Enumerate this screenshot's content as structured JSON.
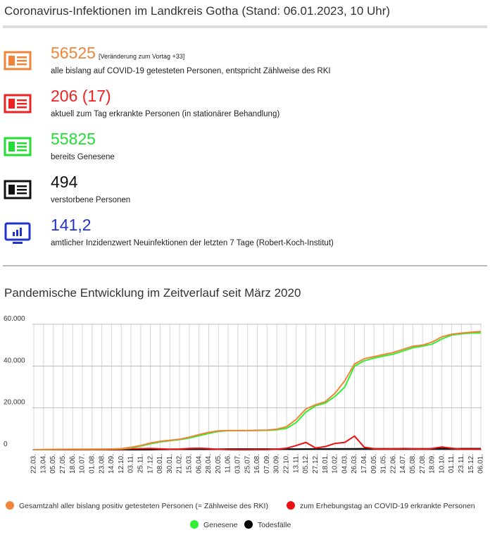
{
  "header": {
    "title": "Coronavirus-Infektionen im Landkreis Gotha (Stand: 06.01.2023, 10 Uhr)"
  },
  "stats": [
    {
      "value": "56525",
      "note": "[Veränderung zum Vortag +33]",
      "description": "alle bislang auf COVID-19 getesteten Personen, entspricht Zählweise des RKI",
      "color": "#f0853a"
    },
    {
      "value": "206 (17)",
      "description": "aktuell zum Tag erkrankte Personen (in stationärer Behandlung)",
      "color": "#ee2222"
    },
    {
      "value": "55825",
      "description": "bereits Genesene",
      "color": "#22dd33"
    },
    {
      "value": "494",
      "description": "verstorbene Personen",
      "color": "#111111"
    },
    {
      "value": "141,2",
      "description": "amtlicher Inzidenzwert Neuinfektionen der letzten 7 Tage (Robert-Koch-Institut)",
      "color": "#2233cc"
    }
  ],
  "section": {
    "title": "Pandemische Entwicklung im Zeitverlauf seit März 2020"
  },
  "chart_data": {
    "type": "line",
    "categories": [
      "22.03.",
      "13.04.",
      "05.05.",
      "27.05.",
      "18.06.",
      "10.07.",
      "01.08.",
      "23.08.",
      "14.09.",
      "12.10.",
      "03.11.",
      "25.11.",
      "17.12.",
      "08.01.",
      "30.01.",
      "21.02.",
      "15.03.",
      "06.04.",
      "28.04.",
      "20.05.",
      "11.06.",
      "03.07.",
      "25.07.",
      "16.08.",
      "07.09.",
      "30.09.",
      "22.10.",
      "13.11.",
      "05.12.",
      "27.12.",
      "18.01.",
      "10.02.",
      "04.03.",
      "26.03.",
      "17.04.",
      "09.05.",
      "31.05.",
      "22.06.",
      "14.07.",
      "05.08.",
      "27.08.",
      "18.09.",
      "10.10.",
      "01.11.",
      "23.11.",
      "15.12.",
      "06.01."
    ],
    "series": [
      {
        "name": "Gesamtzahl aller bislang positiv getesteten Personen (= Zählweise des RKI)",
        "color": "#f0853a",
        "values": [
          0,
          100,
          150,
          200,
          200,
          200,
          250,
          300,
          350,
          500,
          1200,
          2000,
          3200,
          4000,
          4500,
          5000,
          6000,
          7200,
          8300,
          9000,
          9200,
          9200,
          9200,
          9300,
          9400,
          9800,
          11000,
          14500,
          19500,
          21500,
          23000,
          27000,
          33000,
          41000,
          43500,
          44500,
          45500,
          46500,
          48000,
          49500,
          50000,
          51500,
          54000,
          55200,
          55800,
          56200,
          56525
        ]
      },
      {
        "name": "zum Erhebungstag an COVID-19 erkrankte Personen",
        "color": "#ee1111",
        "values": [
          0,
          20,
          5,
          0,
          0,
          5,
          20,
          20,
          30,
          100,
          400,
          500,
          600,
          400,
          250,
          300,
          600,
          700,
          500,
          150,
          50,
          20,
          20,
          30,
          60,
          250,
          700,
          2000,
          3500,
          800,
          1500,
          3000,
          3500,
          6500,
          1200,
          500,
          300,
          400,
          600,
          500,
          300,
          600,
          1300,
          700,
          300,
          250,
          206
        ]
      },
      {
        "name": "Genesene",
        "color": "#33ee33",
        "values": [
          0,
          50,
          100,
          150,
          200,
          200,
          200,
          250,
          300,
          400,
          900,
          1700,
          2800,
          3700,
          4300,
          4800,
          5600,
          6700,
          7800,
          8700,
          9100,
          9100,
          9150,
          9200,
          9250,
          9500,
          10200,
          13000,
          18000,
          21000,
          22300,
          25500,
          30000,
          40000,
          42500,
          43800,
          44800,
          45700,
          47200,
          48800,
          49500,
          50500,
          53000,
          54800,
          55400,
          55800,
          55825
        ]
      },
      {
        "name": "Todesfälle",
        "color": "#000000",
        "values": [
          0,
          0,
          0,
          0,
          0,
          0,
          0,
          0,
          0,
          0,
          5,
          20,
          60,
          120,
          170,
          200,
          220,
          240,
          260,
          270,
          275,
          275,
          275,
          276,
          278,
          280,
          290,
          310,
          340,
          360,
          380,
          400,
          420,
          440,
          455,
          460,
          465,
          470,
          475,
          478,
          480,
          483,
          486,
          488,
          490,
          492,
          494
        ]
      }
    ],
    "ylim": [
      0,
      60000
    ],
    "yticks": [
      0,
      {
        "value": 20000,
        "label": "20.000"
      },
      {
        "value": 40000,
        "label": "40.000"
      },
      {
        "value": 60000,
        "label": "60.000"
      }
    ],
    "grid": true,
    "legend": "bottom"
  }
}
